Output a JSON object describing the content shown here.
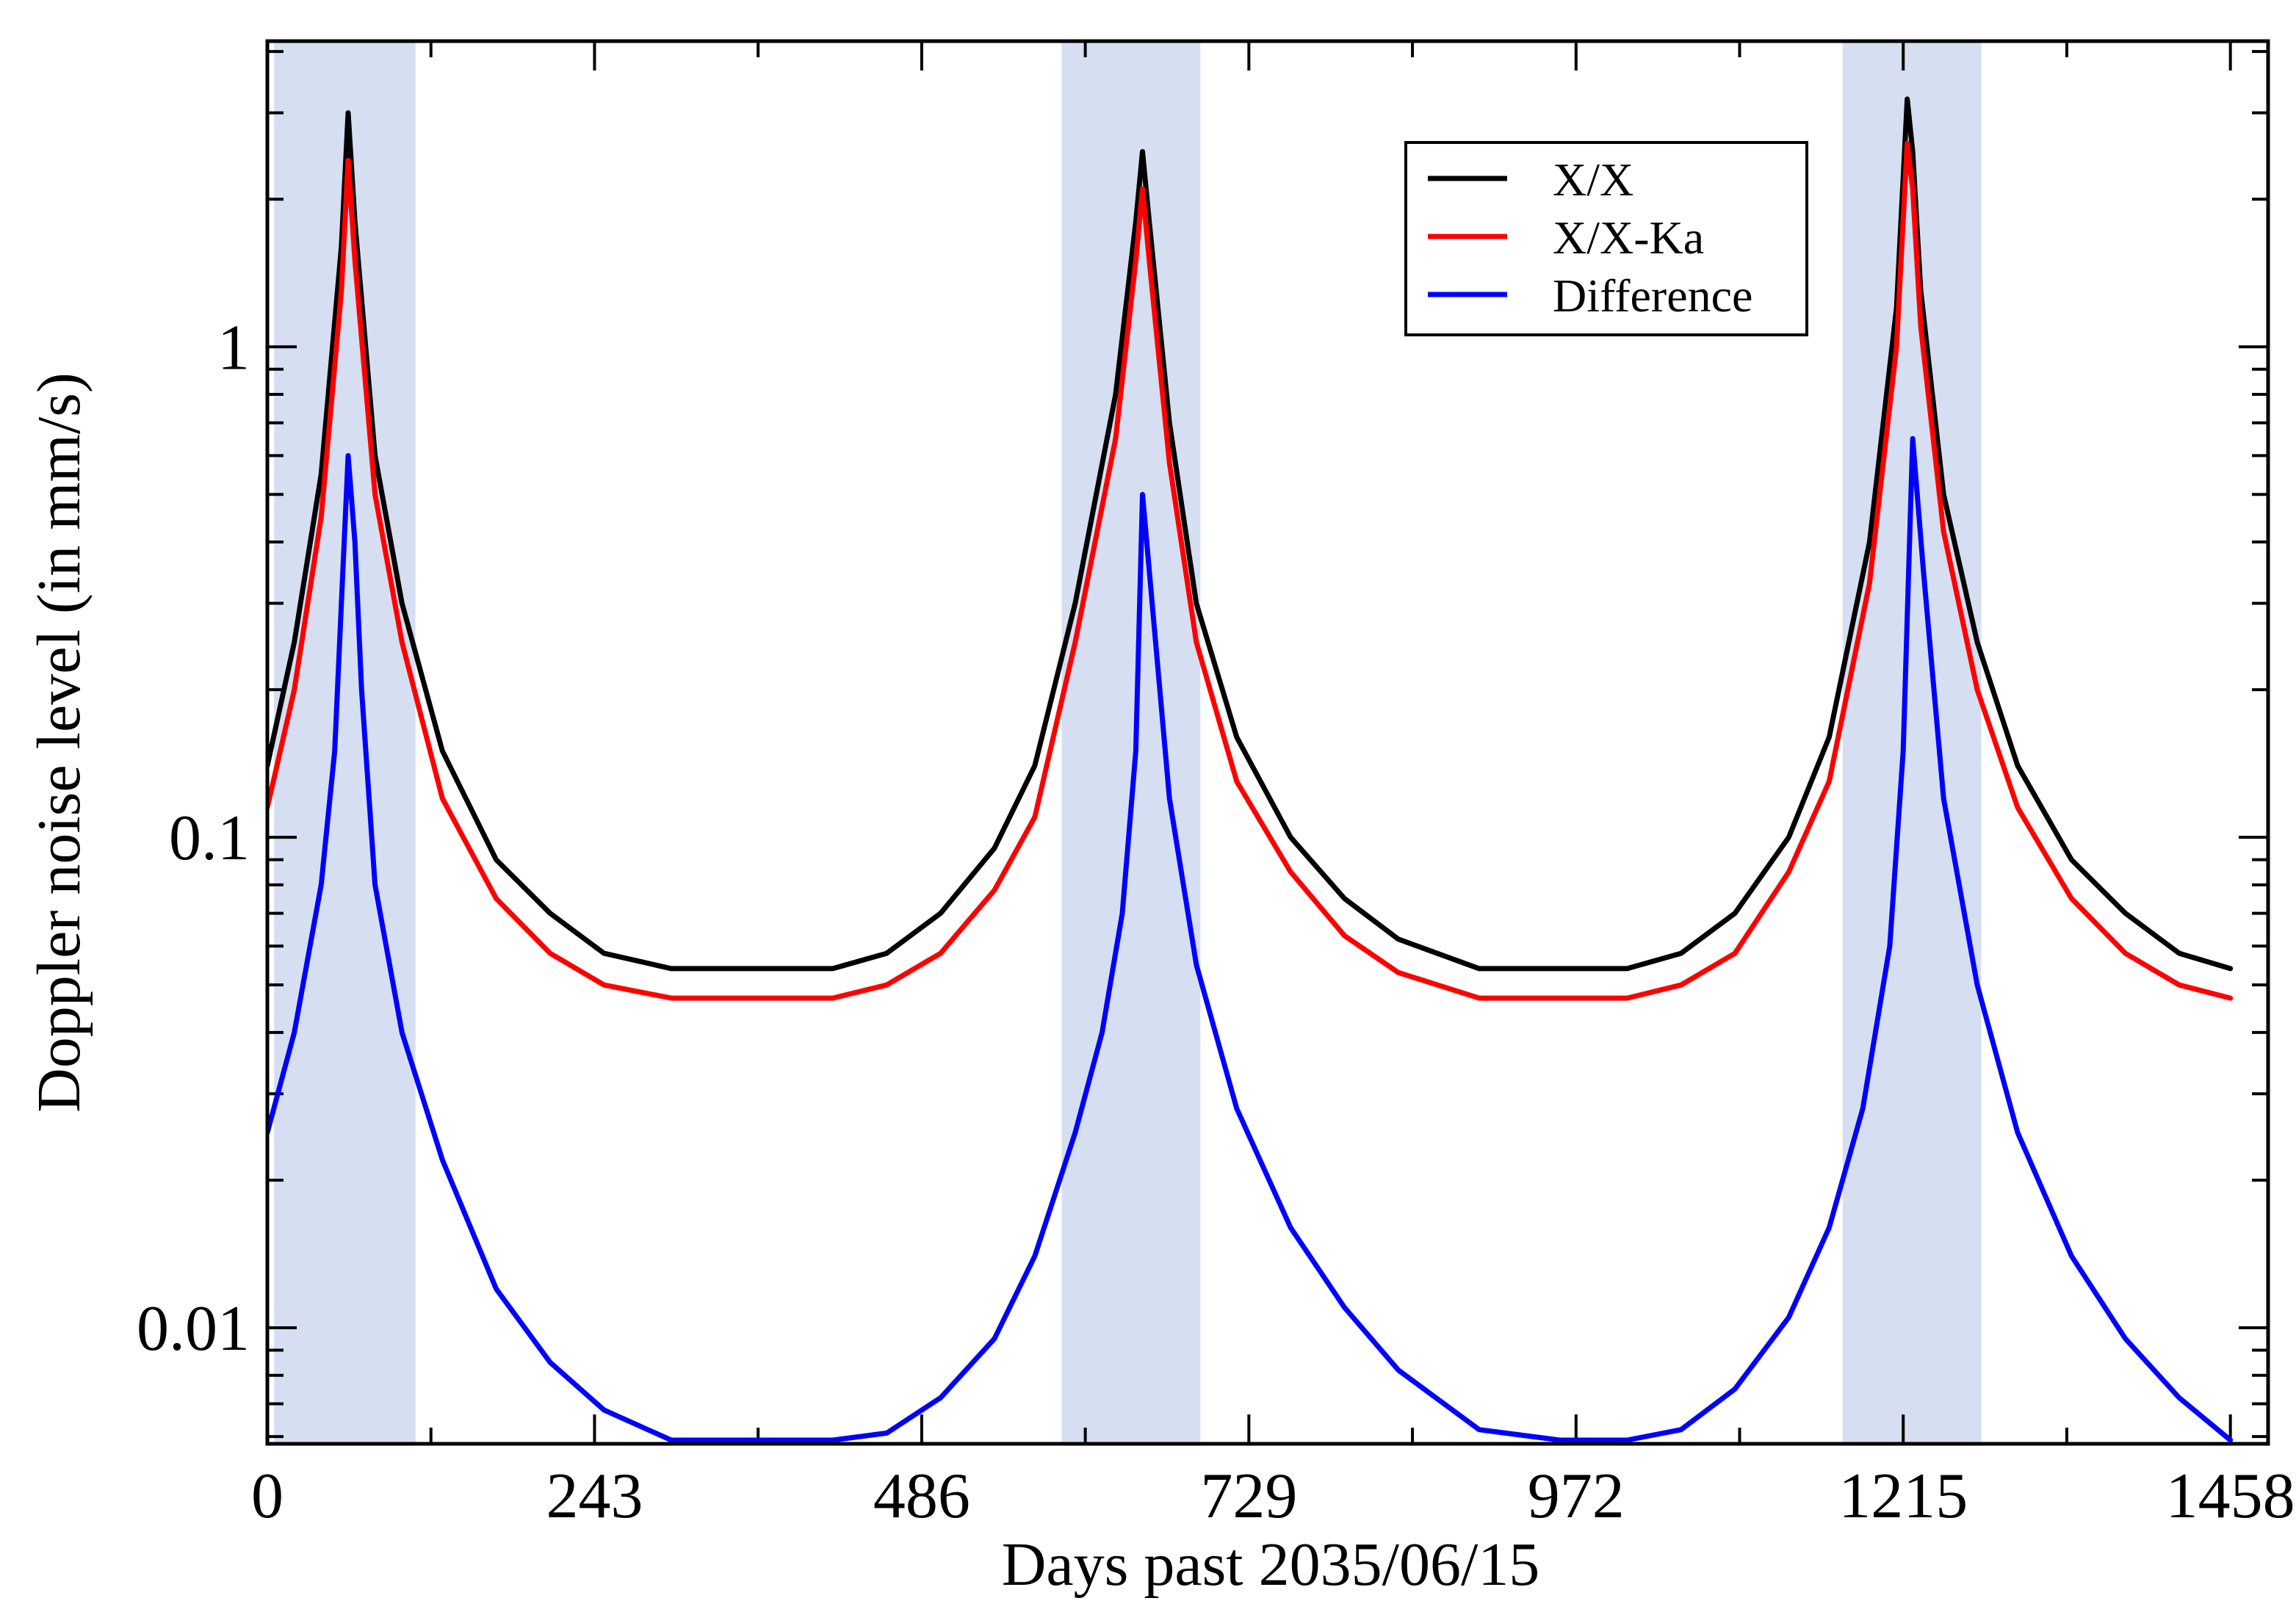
{
  "chart_data": {
    "type": "line",
    "title": "",
    "xlabel": "Days past 2035/06/15",
    "ylabel": "Doppler noise level (in mm/s)",
    "xlim": [
      0,
      1486
    ],
    "ylim": [
      0.0058,
      4.2
    ],
    "yscale": "log",
    "xticks": [
      0,
      243,
      486,
      729,
      972,
      1215,
      1458
    ],
    "xtick_labels": [
      "0",
      "243",
      "486",
      "729",
      "972",
      "1215",
      "1458"
    ],
    "yticks": [
      0.01,
      0.1,
      1
    ],
    "ytick_labels": [
      "0.01",
      "0.1",
      "1"
    ],
    "legend_position": "top-right",
    "shaded_intervals": [
      {
        "x0": 5,
        "x1": 110
      },
      {
        "x0": 590,
        "x1": 693
      },
      {
        "x0": 1170,
        "x1": 1273
      }
    ],
    "series": [
      {
        "name": "X/X",
        "color": "#000000",
        "x": [
          0,
          20,
          40,
          55,
          60,
          65,
          80,
          100,
          130,
          170,
          210,
          250,
          300,
          360,
          420,
          460,
          500,
          540,
          570,
          600,
          630,
          645,
          650,
          655,
          670,
          690,
          720,
          760,
          800,
          840,
          900,
          960,
          1010,
          1050,
          1090,
          1130,
          1160,
          1190,
          1210,
          1218,
          1222,
          1228,
          1245,
          1270,
          1300,
          1340,
          1380,
          1420,
          1458
        ],
        "values": [
          0.14,
          0.25,
          0.55,
          1.6,
          3.0,
          1.8,
          0.6,
          0.3,
          0.15,
          0.09,
          0.07,
          0.058,
          0.054,
          0.054,
          0.054,
          0.058,
          0.07,
          0.095,
          0.14,
          0.3,
          0.8,
          1.8,
          2.5,
          1.8,
          0.7,
          0.3,
          0.16,
          0.1,
          0.075,
          0.062,
          0.054,
          0.054,
          0.054,
          0.058,
          0.07,
          0.1,
          0.16,
          0.4,
          1.2,
          3.2,
          2.5,
          1.3,
          0.5,
          0.25,
          0.14,
          0.09,
          0.07,
          0.058,
          0.054
        ]
      },
      {
        "name": "X/X-Ka",
        "color": "#ff0000",
        "x": [
          0,
          20,
          40,
          55,
          60,
          65,
          80,
          100,
          130,
          170,
          210,
          250,
          300,
          360,
          420,
          460,
          500,
          540,
          570,
          600,
          630,
          645,
          650,
          655,
          670,
          690,
          720,
          760,
          800,
          840,
          900,
          960,
          1010,
          1050,
          1090,
          1130,
          1160,
          1190,
          1210,
          1218,
          1222,
          1228,
          1245,
          1270,
          1300,
          1340,
          1380,
          1420,
          1458
        ],
        "values": [
          0.115,
          0.2,
          0.45,
          1.3,
          2.4,
          1.5,
          0.5,
          0.25,
          0.12,
          0.075,
          0.058,
          0.05,
          0.047,
          0.047,
          0.047,
          0.05,
          0.058,
          0.078,
          0.11,
          0.25,
          0.65,
          1.5,
          2.1,
          1.5,
          0.58,
          0.25,
          0.13,
          0.085,
          0.063,
          0.053,
          0.047,
          0.047,
          0.047,
          0.05,
          0.058,
          0.085,
          0.13,
          0.33,
          1.0,
          2.6,
          2.1,
          1.1,
          0.42,
          0.2,
          0.115,
          0.075,
          0.058,
          0.05,
          0.047
        ]
      },
      {
        "name": "Difference",
        "color": "#0000ff",
        "x": [
          0,
          20,
          40,
          50,
          55,
          60,
          65,
          70,
          80,
          100,
          130,
          170,
          210,
          250,
          300,
          360,
          420,
          460,
          500,
          540,
          570,
          600,
          620,
          635,
          645,
          650,
          655,
          670,
          690,
          720,
          760,
          800,
          840,
          900,
          960,
          1010,
          1050,
          1090,
          1130,
          1160,
          1185,
          1205,
          1215,
          1222,
          1230,
          1245,
          1270,
          1300,
          1340,
          1380,
          1420,
          1458
        ],
        "values": [
          0.025,
          0.04,
          0.08,
          0.15,
          0.3,
          0.6,
          0.4,
          0.2,
          0.08,
          0.04,
          0.022,
          0.012,
          0.0085,
          0.0068,
          0.0059,
          0.0059,
          0.0059,
          0.0061,
          0.0072,
          0.0095,
          0.014,
          0.025,
          0.04,
          0.07,
          0.15,
          0.5,
          0.35,
          0.12,
          0.055,
          0.028,
          0.016,
          0.011,
          0.0082,
          0.0062,
          0.0059,
          0.0059,
          0.0062,
          0.0075,
          0.0105,
          0.016,
          0.028,
          0.06,
          0.15,
          0.65,
          0.35,
          0.12,
          0.05,
          0.025,
          0.014,
          0.0095,
          0.0072,
          0.0059
        ]
      }
    ]
  }
}
